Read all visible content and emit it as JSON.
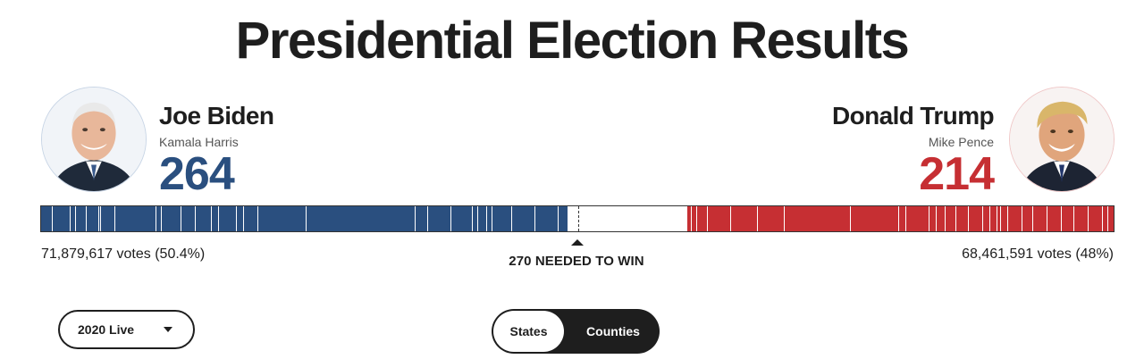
{
  "page": {
    "title": "Presidential Election Results"
  },
  "colors": {
    "democrat": "#2a4f7f",
    "republican": "#c62f33",
    "ink": "#1e1e1e"
  },
  "candidates": {
    "left": {
      "name": "Joe Biden",
      "running_mate": "Kamala Harris",
      "electoral_votes": "264",
      "popular_votes": "71,879,617 votes (50.4%)",
      "avatar_icon": "biden-portrait"
    },
    "right": {
      "name": "Donald Trump",
      "running_mate": "Mike Pence",
      "electoral_votes": "214",
      "popular_votes": "68,461,591 votes (48%)",
      "avatar_icon": "trump-portrait"
    }
  },
  "electoral_bar": {
    "needed_label": "270 NEEDED TO WIN",
    "needed": 270,
    "total": 538,
    "democrat_ev": 264,
    "republican_ev": 214
  },
  "controls": {
    "year_select": {
      "selected": "2020 Live",
      "icon": "chevron-down-icon"
    },
    "view_toggle": {
      "options": [
        "States",
        "Counties"
      ],
      "active": "States"
    }
  }
}
